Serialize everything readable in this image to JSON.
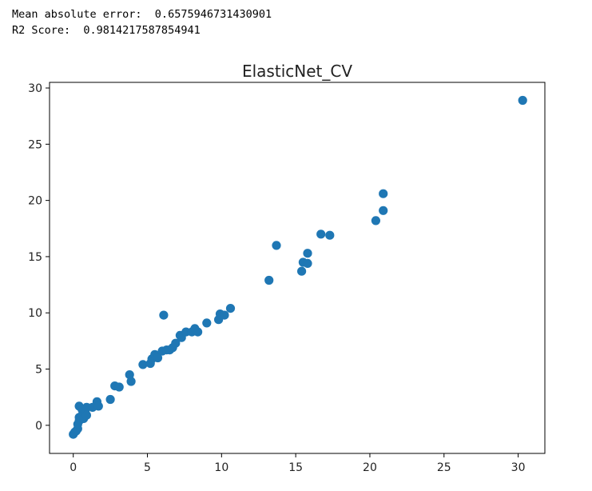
{
  "output": {
    "line1": "Mean absolute error:  0.6575946731430901",
    "line2": "R2 Score:  0.9814217587854941"
  },
  "chart_data": {
    "type": "scatter",
    "title": "ElasticNet_CV",
    "xlabel": "",
    "ylabel": "",
    "xlim": [
      -1.6,
      31.8
    ],
    "ylim": [
      -2.5,
      30.5
    ],
    "xticks": [
      0,
      5,
      10,
      15,
      20,
      25,
      30
    ],
    "yticks": [
      0,
      5,
      10,
      15,
      20,
      25,
      30
    ],
    "grid": false,
    "marker_color": "#1f77b4",
    "points": [
      [
        0.0,
        -0.8
      ],
      [
        0.1,
        -0.6
      ],
      [
        0.2,
        -0.5
      ],
      [
        0.3,
        -0.3
      ],
      [
        0.3,
        0.1
      ],
      [
        0.4,
        0.4
      ],
      [
        0.4,
        0.7
      ],
      [
        0.4,
        1.7
      ],
      [
        0.6,
        1.4
      ],
      [
        0.6,
        0.9
      ],
      [
        0.7,
        0.6
      ],
      [
        0.8,
        1.2
      ],
      [
        0.9,
        1.6
      ],
      [
        0.9,
        0.9
      ],
      [
        1.3,
        1.6
      ],
      [
        1.6,
        2.1
      ],
      [
        1.7,
        1.7
      ],
      [
        2.5,
        2.3
      ],
      [
        2.8,
        3.5
      ],
      [
        3.1,
        3.4
      ],
      [
        3.8,
        4.5
      ],
      [
        3.9,
        3.9
      ],
      [
        4.7,
        5.4
      ],
      [
        5.2,
        5.5
      ],
      [
        5.3,
        5.9
      ],
      [
        5.5,
        6.3
      ],
      [
        5.7,
        6.0
      ],
      [
        6.0,
        6.6
      ],
      [
        6.1,
        9.8
      ],
      [
        6.3,
        6.7
      ],
      [
        6.5,
        6.7
      ],
      [
        6.7,
        6.9
      ],
      [
        6.9,
        7.3
      ],
      [
        7.2,
        8.0
      ],
      [
        7.3,
        7.8
      ],
      [
        7.6,
        8.3
      ],
      [
        8.0,
        8.3
      ],
      [
        8.2,
        8.6
      ],
      [
        8.4,
        8.3
      ],
      [
        9.0,
        9.1
      ],
      [
        9.8,
        9.4
      ],
      [
        9.9,
        9.9
      ],
      [
        10.2,
        9.8
      ],
      [
        10.6,
        10.4
      ],
      [
        13.2,
        12.9
      ],
      [
        13.7,
        16.0
      ],
      [
        15.4,
        13.7
      ],
      [
        15.5,
        14.5
      ],
      [
        15.8,
        15.3
      ],
      [
        15.8,
        14.4
      ],
      [
        16.7,
        17.0
      ],
      [
        17.3,
        16.9
      ],
      [
        20.4,
        18.2
      ],
      [
        20.9,
        20.6
      ],
      [
        20.9,
        19.1
      ],
      [
        30.3,
        28.9
      ]
    ]
  }
}
